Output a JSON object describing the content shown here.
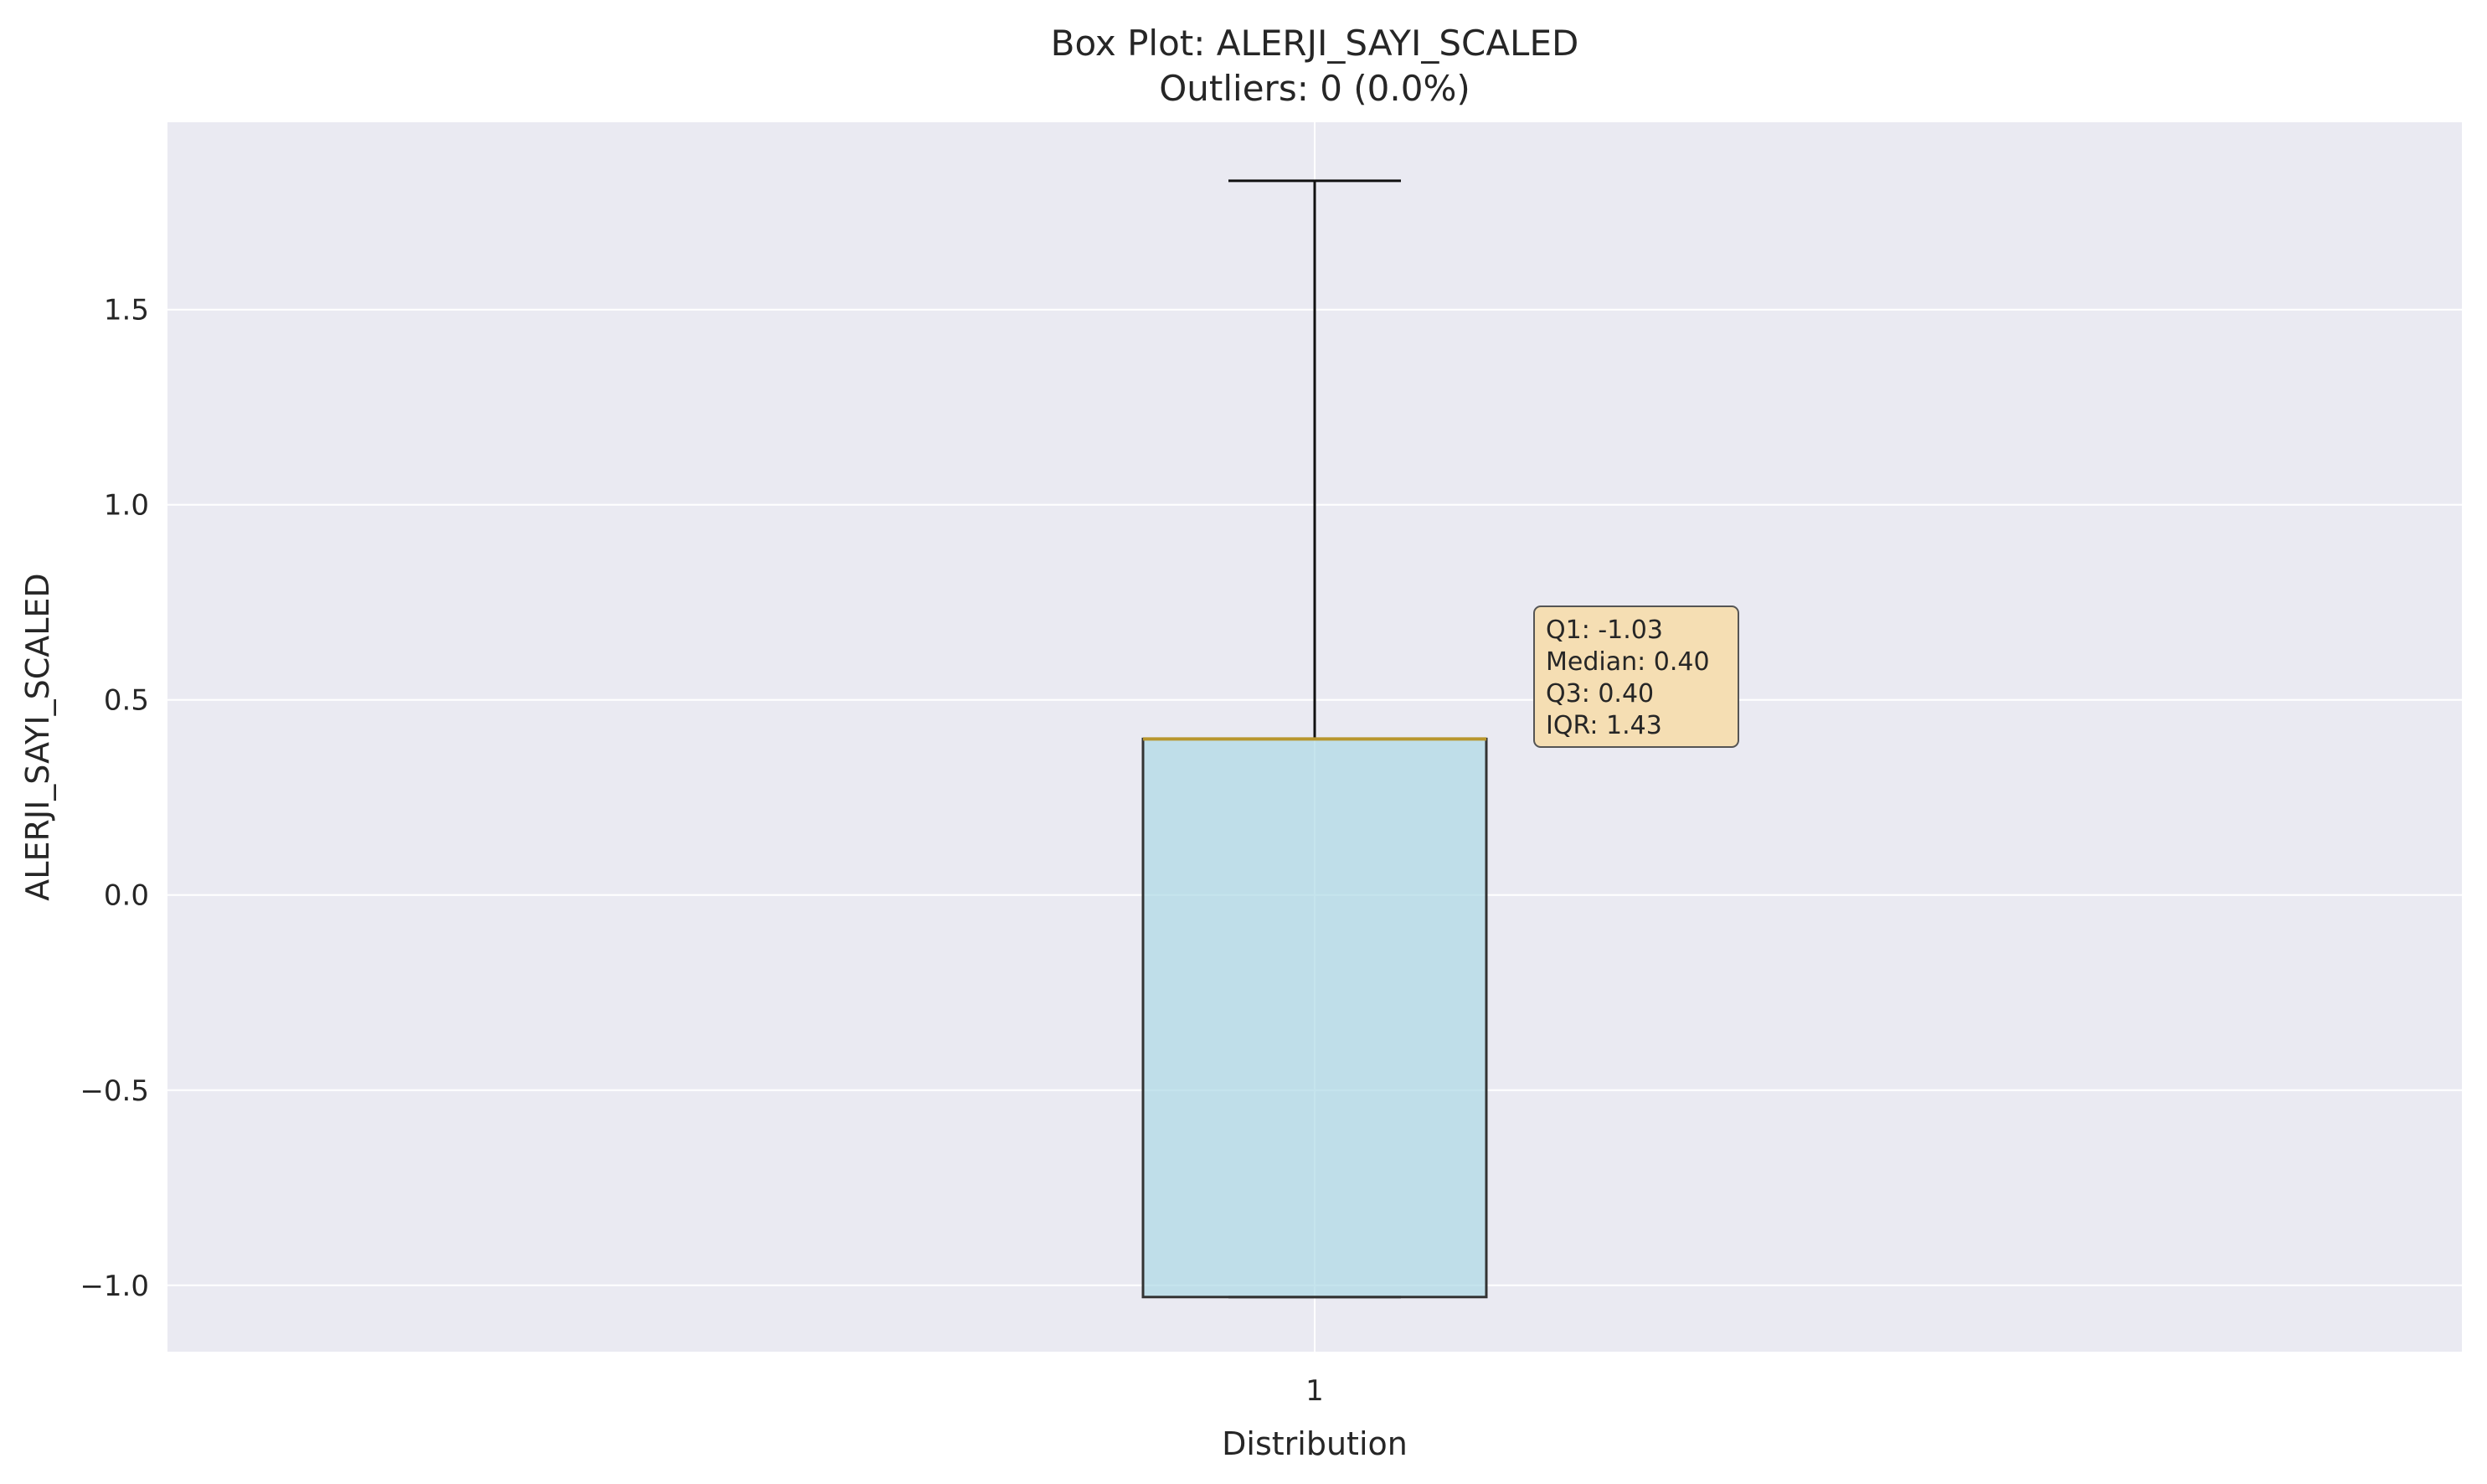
{
  "chart_data": {
    "type": "box",
    "title": "Box Plot: ALERJI_SAYI_SCALED",
    "subtitle": "Outliers: 0 (0.0%)",
    "xlabel": "Distribution",
    "ylabel": "ALERJI_SAYI_SCALED",
    "categories": [
      "1"
    ],
    "ylim": [
      -1.17,
      1.98
    ],
    "y_ticks": [
      -1.0,
      -0.5,
      0.0,
      0.5,
      1.0,
      1.5
    ],
    "y_tick_labels": [
      "−1.0",
      "−0.5",
      "0.0",
      "0.5",
      "1.0",
      "1.5"
    ],
    "box": {
      "whisker_low": -1.03,
      "q1": -1.03,
      "median": 0.4,
      "q3": 0.4,
      "whisker_high": 1.83
    },
    "stats_lines": [
      "Q1: -1.03",
      "Median: 0.40",
      "Q3: 0.40",
      "IQR: 1.43"
    ],
    "grid": true,
    "colors": {
      "plot_background": "#eaeaf2",
      "grid": "#ffffff",
      "box_fill": "#add8e6",
      "box_edge": "#333333",
      "median": "#b8962e",
      "whisker": "#111111",
      "stats_box_fill": "#f5deb3",
      "stats_box_edge": "#555555"
    }
  }
}
